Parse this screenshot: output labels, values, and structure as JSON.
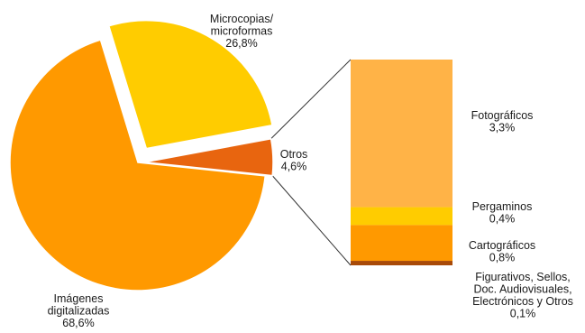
{
  "chart_data": [
    {
      "type": "pie",
      "title": "",
      "slices": [
        {
          "label_lines": [
            "Microcopias/",
            "microformas"
          ],
          "value": 26.8,
          "value_label": "26,8%",
          "color": "#FFCC00",
          "exploded": true
        },
        {
          "label_lines": [
            "Otros"
          ],
          "value": 4.6,
          "value_label": "4,6%",
          "color": "#E8650F",
          "exploded": true
        },
        {
          "label_lines": [
            "Imágenes",
            "digitalizadas"
          ],
          "value": 68.6,
          "value_label": "68,6%",
          "color": "#FF9900",
          "exploded": false
        }
      ]
    },
    {
      "type": "bar",
      "stacked": true,
      "title": "",
      "breakdown_of": "Otros",
      "segments": [
        {
          "label_lines": [
            "Fotográficos"
          ],
          "value": 3.3,
          "value_label": "3,3%",
          "color": "#FFB347"
        },
        {
          "label_lines": [
            "Pergaminos"
          ],
          "value": 0.4,
          "value_label": "0,4%",
          "color": "#FFCC00"
        },
        {
          "label_lines": [
            "Cartográficos"
          ],
          "value": 0.8,
          "value_label": "0,8%",
          "color": "#FF9900"
        },
        {
          "label_lines": [
            "Figurativos, Sellos,",
            "Doc. Audiovisuales,",
            "Electrónicos y Otros"
          ],
          "value": 0.1,
          "value_label": "0,1%",
          "color": "#A84A08"
        }
      ]
    }
  ]
}
